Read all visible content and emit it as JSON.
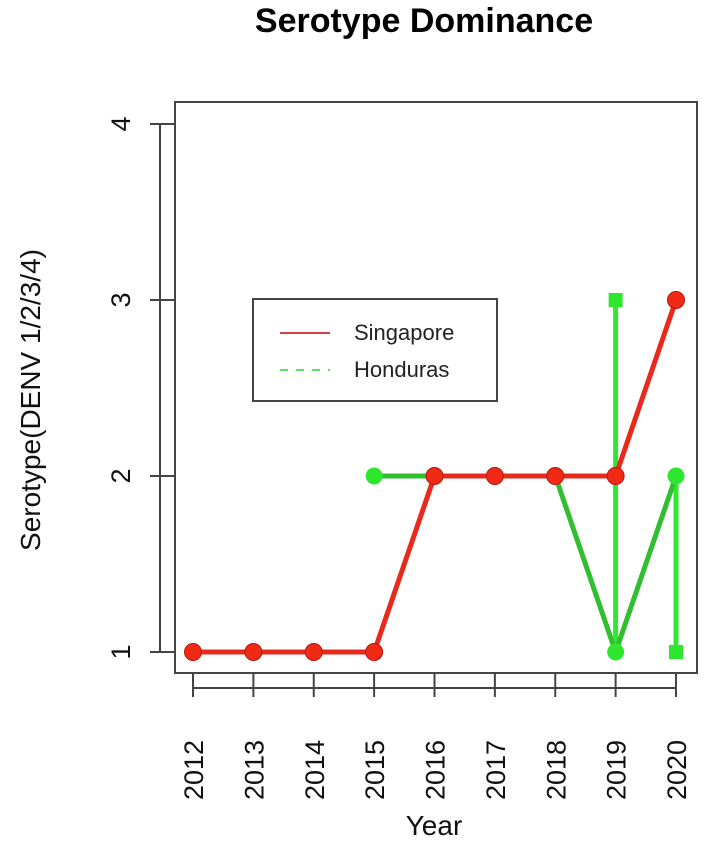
{
  "chart_data": {
    "type": "line",
    "title": "Serotype Dominance",
    "xlabel": "Year",
    "ylabel": "Serotype(DENV 1/2/3/4)",
    "x": [
      2012,
      2013,
      2014,
      2015,
      2016,
      2017,
      2018,
      2019,
      2020
    ],
    "xticks": [
      "2012",
      "2013",
      "2014",
      "2015",
      "2016",
      "2017",
      "2018",
      "2019",
      "2020"
    ],
    "yticks": [
      "1",
      "2",
      "3",
      "4"
    ],
    "ylim": [
      1,
      4
    ],
    "grid": false,
    "legend_position": "inside-left-middle",
    "series": [
      {
        "name": "Singapore",
        "color": "#ee2211",
        "line_style": "solid",
        "marker": "circle",
        "points": [
          [
            2012,
            1
          ],
          [
            2013,
            1
          ],
          [
            2014,
            1
          ],
          [
            2015,
            1
          ],
          [
            2016,
            2
          ],
          [
            2017,
            2
          ],
          [
            2018,
            2
          ],
          [
            2019,
            2
          ],
          [
            2020,
            3
          ]
        ]
      },
      {
        "name": "Honduras",
        "color": "#22cc22",
        "line_style": "dashed",
        "marker": "circle",
        "points": [
          [
            2015,
            2
          ],
          [
            2016,
            2
          ],
          [
            2017,
            2
          ],
          [
            2018,
            2
          ],
          [
            2019,
            1
          ],
          [
            2020,
            2
          ]
        ],
        "extra_points": [
          [
            2019,
            3
          ],
          [
            2020,
            1
          ]
        ],
        "extra_marker": "square"
      }
    ]
  }
}
